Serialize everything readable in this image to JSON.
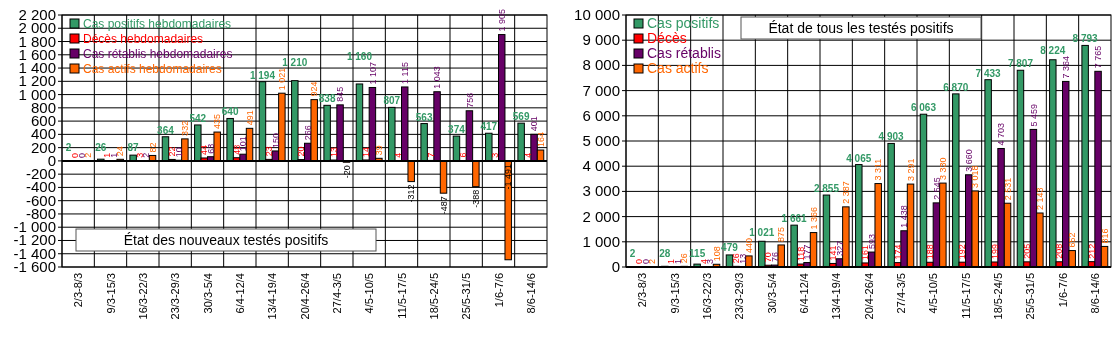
{
  "chart_data": [
    {
      "type": "bar",
      "title": "État des nouveaux testés positifs",
      "categories": [
        "2/3-8/3",
        "9/3-15/3",
        "16/3-22/3",
        "23/3-29/3",
        "30/3-5/4",
        "6/4-12/4",
        "13/4-19/4",
        "20/4-26/4",
        "27/4-3/5",
        "4/5-10/5",
        "11/5-17/5",
        "18/5-24/5",
        "25/5-31/5",
        "1/6-7/6",
        "8/6-14/6"
      ],
      "series": [
        {
          "name": "Cas positifs hebdomadaires",
          "color": "#339966",
          "values": [
            2,
            26,
            87,
            364,
            542,
            640,
            1194,
            1210,
            838,
            1160,
            807,
            563,
            374,
            417,
            569
          ]
        },
        {
          "name": "Décès hebdomadaires",
          "color": "#ff0000",
          "values": [
            0,
            1,
            3,
            22,
            44,
            48,
            23,
            20,
            13,
            14,
            4,
            7,
            6,
            3,
            4
          ]
        },
        {
          "name": "Cas rétablis hebdomadaires",
          "color": "#660066",
          "values": [
            0,
            1,
            2,
            10,
            63,
            101,
            150,
            266,
            845,
            1107,
            1115,
            1043,
            756,
            1905,
            401
          ]
        },
        {
          "name": "Cas actifs hebdomadaires",
          "color": "#ff6600",
          "values": [
            2,
            24,
            82,
            332,
            435,
            491,
            1021,
            924,
            -20,
            39,
            -312,
            -487,
            -388,
            -1491,
            164
          ]
        }
      ],
      "ylim": [
        -1600,
        2200
      ],
      "yticks": [
        {
          "value": -1600,
          "label": "-1 600"
        },
        {
          "value": -1400,
          "label": "-1 400"
        },
        {
          "value": -1200,
          "label": "-1 200"
        },
        {
          "value": -1000,
          "label": "-1 000"
        },
        -800,
        -600,
        -400,
        -200,
        0,
        200,
        400,
        600,
        800,
        {
          "value": 1000,
          "label": "1 000"
        },
        {
          "value": 1200,
          "label": "1 200"
        },
        {
          "value": 1400,
          "label": "1 400"
        },
        {
          "value": 1600,
          "label": "1 600"
        },
        {
          "value": 1800,
          "label": "1 800"
        },
        {
          "value": 2000,
          "label": "2 000"
        },
        {
          "value": 2200,
          "label": "2 200"
        }
      ],
      "grid": true,
      "legend": "top left",
      "data_labels": true
    },
    {
      "type": "bar",
      "title": "État de tous les testés positifs",
      "categories": [
        "2/3-8/3",
        "9/3-15/3",
        "16/3-22/3",
        "23/3-29/3",
        "30/3-5/4",
        "6/4-12/4",
        "13/4-19/4",
        "20/4-26/4",
        "27/4-3/5",
        "4/5-10/5",
        "11/5-17/5",
        "18/5-24/5",
        "25/5-31/5",
        "1/6-7/6",
        "8/6-14/6"
      ],
      "series": [
        {
          "name": "Cas positifs",
          "color": "#339966",
          "values": [
            2,
            28,
            115,
            479,
            1021,
            1661,
            2855,
            4065,
            4903,
            6063,
            6870,
            7433,
            7807,
            8224,
            8793
          ]
        },
        {
          "name": "Décès",
          "color": "#ff0000",
          "values": [
            0,
            1,
            4,
            26,
            70,
            118,
            141,
            161,
            174,
            188,
            192,
            199,
            205,
            208,
            212
          ]
        },
        {
          "name": "Cas rétablis",
          "color": "#660066",
          "values": [
            0,
            1,
            3,
            13,
            76,
            177,
            327,
            593,
            1438,
            2545,
            3660,
            4703,
            5459,
            7364,
            7765
          ]
        },
        {
          "name": "Cas actifs",
          "color": "#ff6600",
          "values": [
            2,
            26,
            108,
            440,
            875,
            1366,
            2387,
            3311,
            3291,
            3330,
            3018,
            2531,
            2143,
            652,
            816
          ]
        }
      ],
      "ylim": [
        0,
        10000
      ],
      "yticks": [
        0,
        {
          "value": 1000,
          "label": "1 000"
        },
        {
          "value": 2000,
          "label": "2 000"
        },
        {
          "value": 3000,
          "label": "3 000"
        },
        {
          "value": 4000,
          "label": "4 000"
        },
        {
          "value": 5000,
          "label": "5 000"
        },
        {
          "value": 6000,
          "label": "6 000"
        },
        {
          "value": 7000,
          "label": "7 000"
        },
        {
          "value": 8000,
          "label": "8 000"
        },
        {
          "value": 9000,
          "label": "9 000"
        },
        {
          "value": 10000,
          "label": "10 000"
        }
      ],
      "grid": true,
      "legend": "top left",
      "data_labels": true
    }
  ]
}
